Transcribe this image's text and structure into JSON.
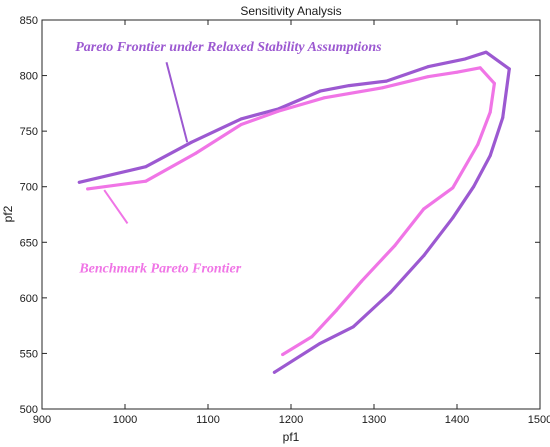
{
  "chart_data": {
    "type": "line",
    "title": "Sensitivity Analysis",
    "xlabel": "pf1",
    "ylabel": "pf2",
    "xlim": [
      900,
      1500
    ],
    "ylim": [
      500,
      850
    ],
    "xticks": [
      900,
      1000,
      1100,
      1200,
      1300,
      1400,
      1500
    ],
    "yticks": [
      500,
      550,
      600,
      650,
      700,
      750,
      800,
      850
    ],
    "grid": false,
    "legend": "none",
    "series": [
      {
        "name": "Pareto Frontier under Relaxed Stability Assumptions",
        "color": "#9c59d1",
        "points": [
          [
            945,
            704
          ],
          [
            1025,
            718
          ],
          [
            1080,
            740
          ],
          [
            1140,
            761
          ],
          [
            1185,
            770
          ],
          [
            1235,
            786
          ],
          [
            1270,
            791
          ],
          [
            1315,
            795
          ],
          [
            1365,
            808
          ],
          [
            1410,
            815
          ],
          [
            1435,
            821
          ],
          [
            1463,
            806
          ],
          [
            1455,
            762
          ],
          [
            1440,
            728
          ],
          [
            1420,
            700
          ],
          [
            1395,
            672
          ],
          [
            1360,
            638
          ],
          [
            1320,
            605
          ],
          [
            1275,
            574
          ],
          [
            1235,
            559
          ],
          [
            1180,
            533
          ]
        ]
      },
      {
        "name": "Benchmark Pareto Frontier",
        "color": "#f075e6",
        "points": [
          [
            955,
            698
          ],
          [
            1025,
            705
          ],
          [
            1085,
            730
          ],
          [
            1140,
            756
          ],
          [
            1185,
            768
          ],
          [
            1240,
            780
          ],
          [
            1310,
            789
          ],
          [
            1365,
            799
          ],
          [
            1400,
            803
          ],
          [
            1428,
            807
          ],
          [
            1445,
            793
          ],
          [
            1440,
            767
          ],
          [
            1425,
            738
          ],
          [
            1395,
            699
          ],
          [
            1360,
            680
          ],
          [
            1325,
            647
          ],
          [
            1285,
            615
          ],
          [
            1255,
            589
          ],
          [
            1225,
            565
          ],
          [
            1190,
            549
          ]
        ]
      }
    ],
    "annotations": [
      {
        "text": "Pareto Frontier under Relaxed Stability Assumptions",
        "series": 0,
        "color": "#9c59d1",
        "text_at": [
          940,
          822
        ],
        "leader": [
          [
            1050,
            812
          ],
          [
            1075,
            740
          ]
        ]
      },
      {
        "text": "Benchmark Pareto Frontier",
        "series": 1,
        "color": "#f075e6",
        "text_at": [
          945,
          623
        ],
        "leader": [
          [
            1003,
            667
          ],
          [
            975,
            697
          ]
        ]
      }
    ]
  }
}
